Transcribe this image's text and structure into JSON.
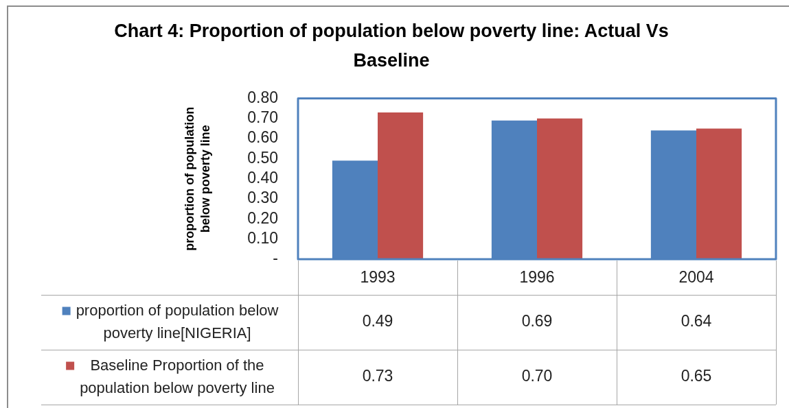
{
  "chart_data": {
    "type": "bar",
    "title": "Chart 4: Proportion of population below poverty line: Actual Vs Baseline",
    "ylabel": "proportion of population below poverty line",
    "categories": [
      "1993",
      "1996",
      "2004"
    ],
    "series": [
      {
        "name": "proportion of population below poverty line[NIGERIA]",
        "color": "#4f81bd",
        "values": [
          0.49,
          0.69,
          0.64
        ],
        "value_labels": [
          "0.49",
          "0.69",
          "0.64"
        ]
      },
      {
        "name": "Baseline Proportion of the population below poverty line",
        "color": "#c0504d",
        "values": [
          0.73,
          0.7,
          0.65
        ],
        "value_labels": [
          "0.73",
          "0.70",
          "0.65"
        ]
      }
    ],
    "ylim": [
      0,
      0.8
    ],
    "yticks": [
      {
        "value": 0,
        "label": "-"
      },
      {
        "value": 0.1,
        "label": "0.10"
      },
      {
        "value": 0.2,
        "label": "0.20"
      },
      {
        "value": 0.3,
        "label": "0.30"
      },
      {
        "value": 0.4,
        "label": "0.40"
      },
      {
        "value": 0.5,
        "label": "0.50"
      },
      {
        "value": 0.6,
        "label": "0.60"
      },
      {
        "value": 0.7,
        "label": "0.70"
      },
      {
        "value": 0.8,
        "label": "0.80"
      }
    ],
    "legend": "bottom"
  }
}
